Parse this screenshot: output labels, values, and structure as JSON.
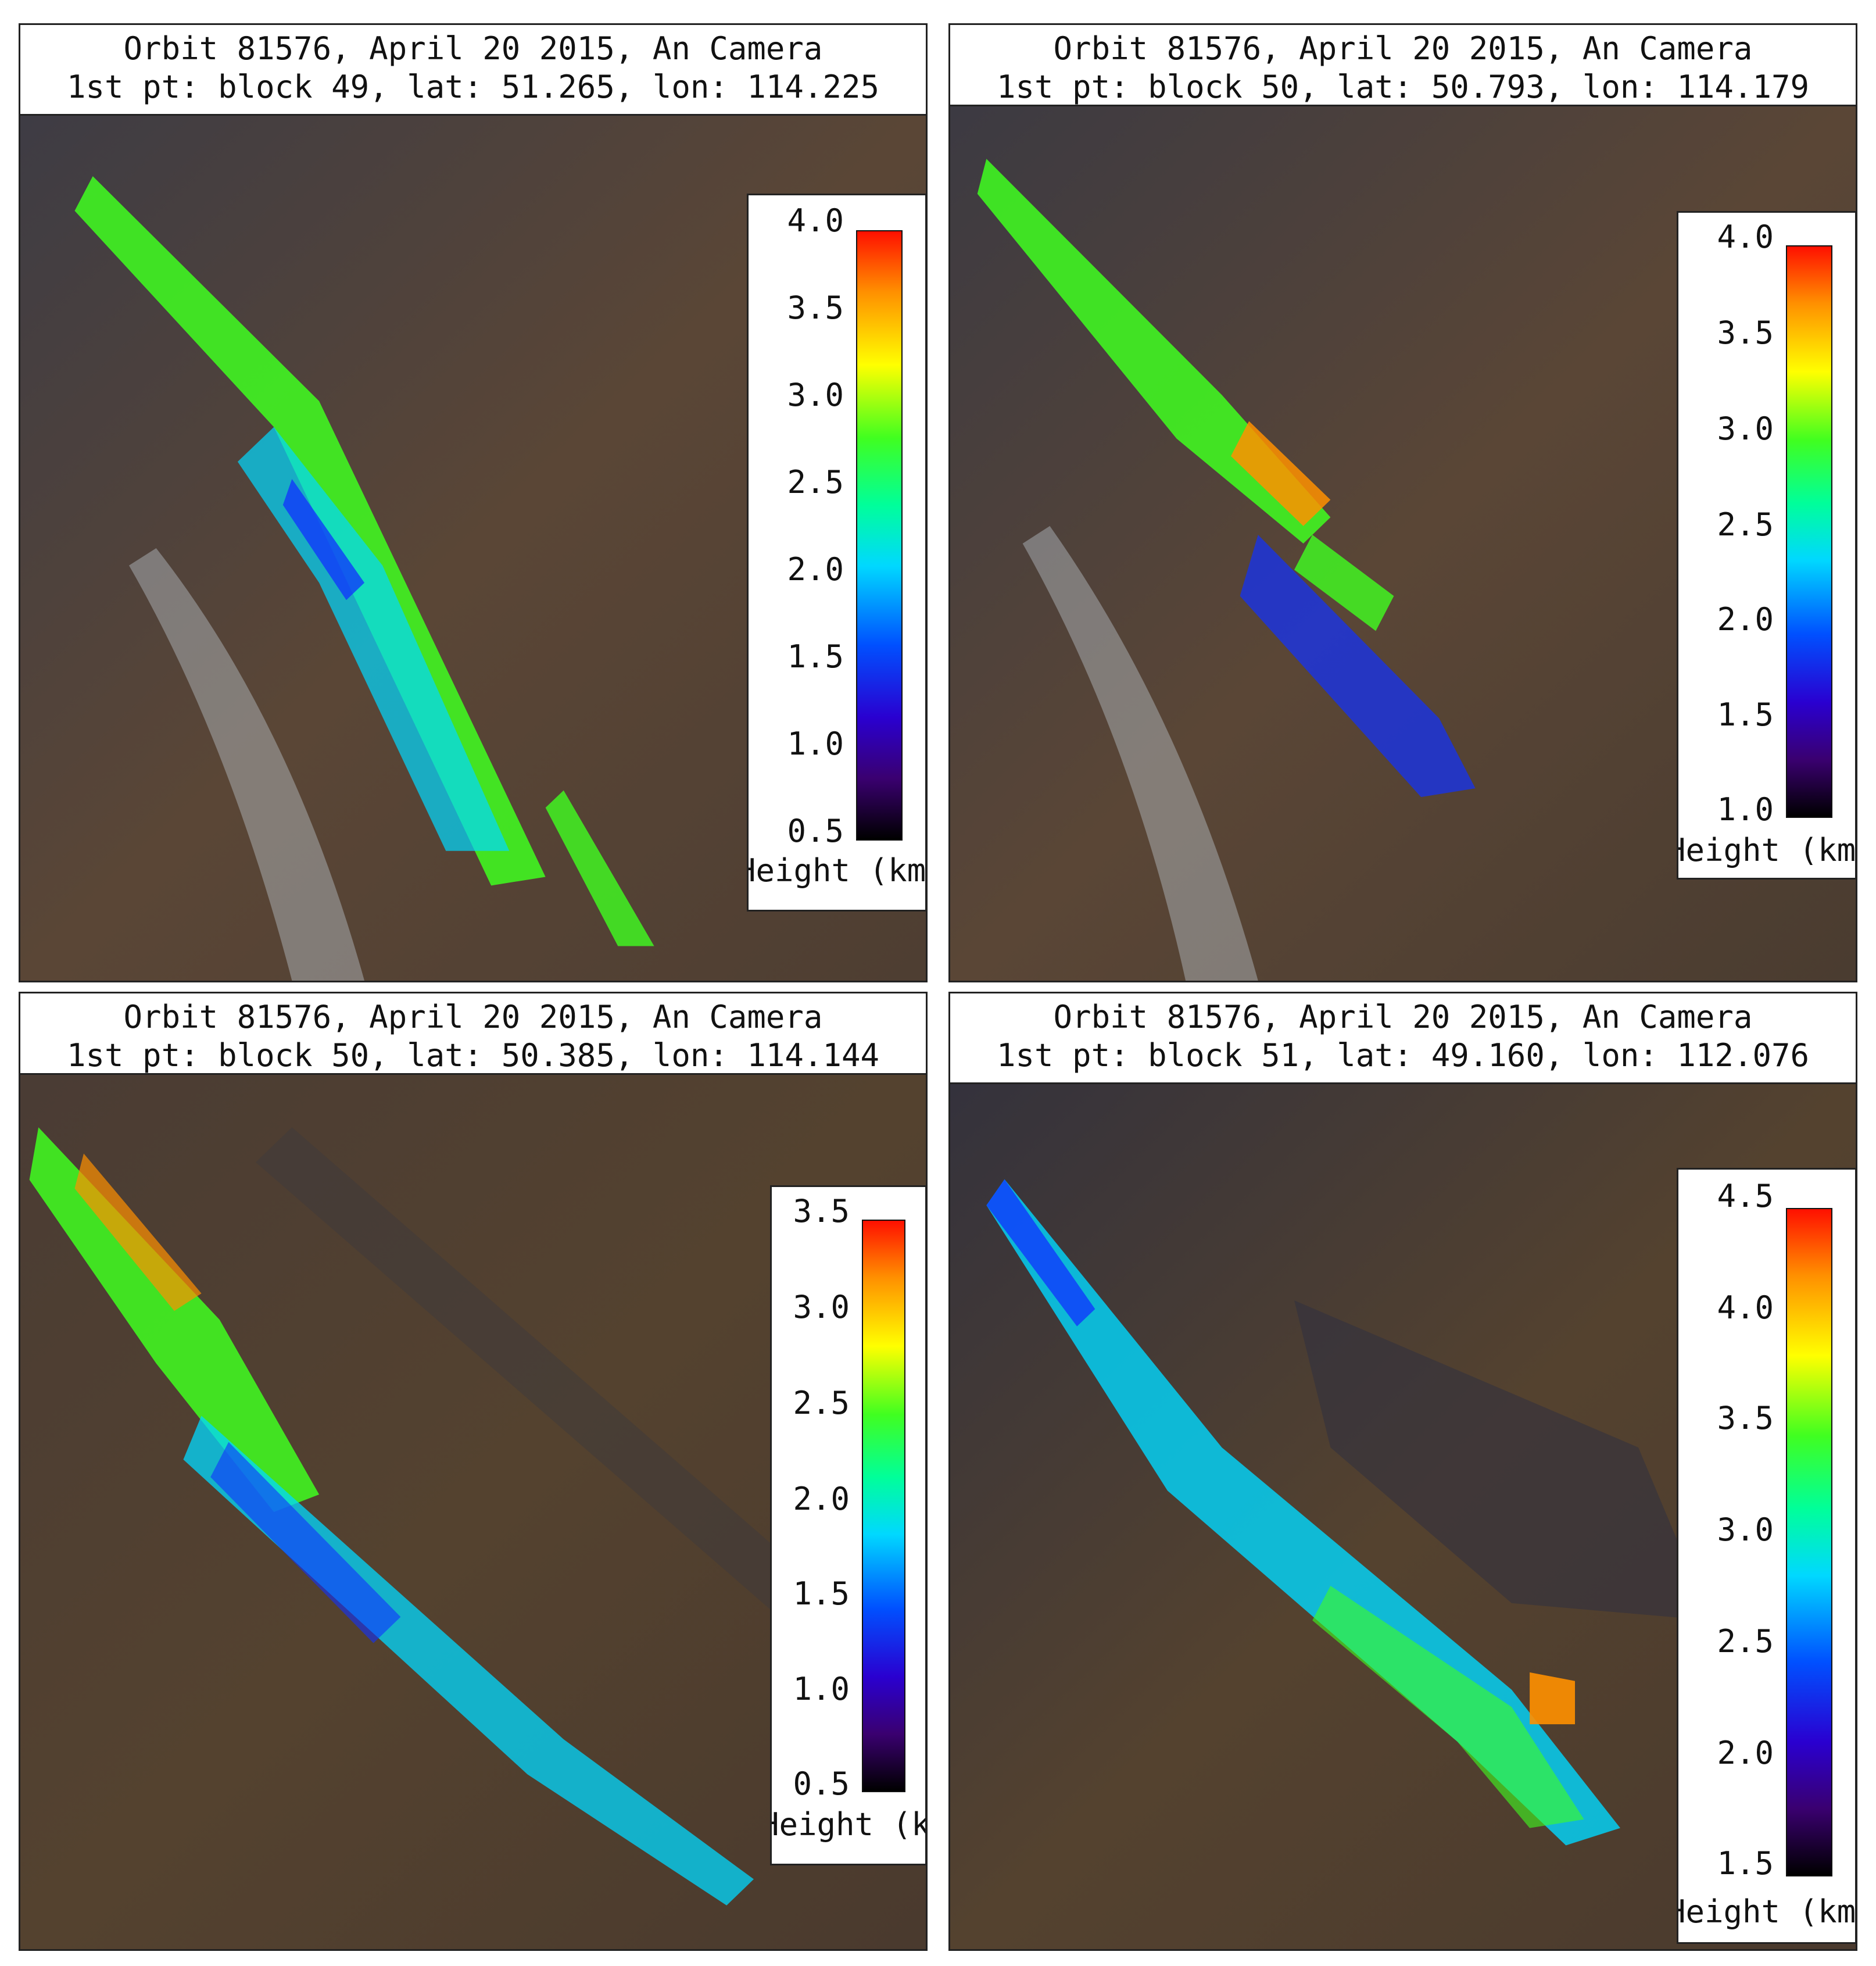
{
  "panels": [
    {
      "title_line1": "Orbit 81576, April 20 2015, An Camera",
      "title_line2": "1st pt: block 49, lat: 51.265, lon: 114.225",
      "colorbar": {
        "ticks": [
          "4.0",
          "3.5",
          "3.0",
          "2.5",
          "2.0",
          "1.5",
          "1.0",
          "0.5"
        ],
        "label": "Height (km"
      }
    },
    {
      "title_line1": "Orbit 81576, April 20 2015, An Camera",
      "title_line2": "1st pt: block 50, lat: 50.793, lon: 114.179",
      "colorbar": {
        "ticks": [
          "4.0",
          "3.5",
          "3.0",
          "2.5",
          "2.0",
          "1.5",
          "1.0"
        ],
        "label": "Height (km"
      }
    },
    {
      "title_line1": "Orbit 81576, April 20 2015, An Camera",
      "title_line2": "1st pt: block 50, lat: 50.385, lon: 114.144",
      "colorbar": {
        "ticks": [
          "3.5",
          "3.0",
          "2.5",
          "2.0",
          "1.5",
          "1.0",
          "0.5"
        ],
        "label": "Height (km"
      }
    },
    {
      "title_line1": "Orbit 81576, April 20 2015, An Camera",
      "title_line2": "1st pt: block 51, lat: 49.160, lon: 112.076",
      "colorbar": {
        "ticks": [
          "4.5",
          "4.0",
          "3.5",
          "3.0",
          "2.5",
          "2.0",
          "1.5"
        ],
        "label": "Height (km"
      }
    }
  ],
  "colors": {
    "ground": "#5a4a3a",
    "smoke": "#b8c0c8",
    "plume_green": "#40ff20",
    "plume_cyan": "#00d8ff",
    "plume_blue": "#1030ff"
  }
}
